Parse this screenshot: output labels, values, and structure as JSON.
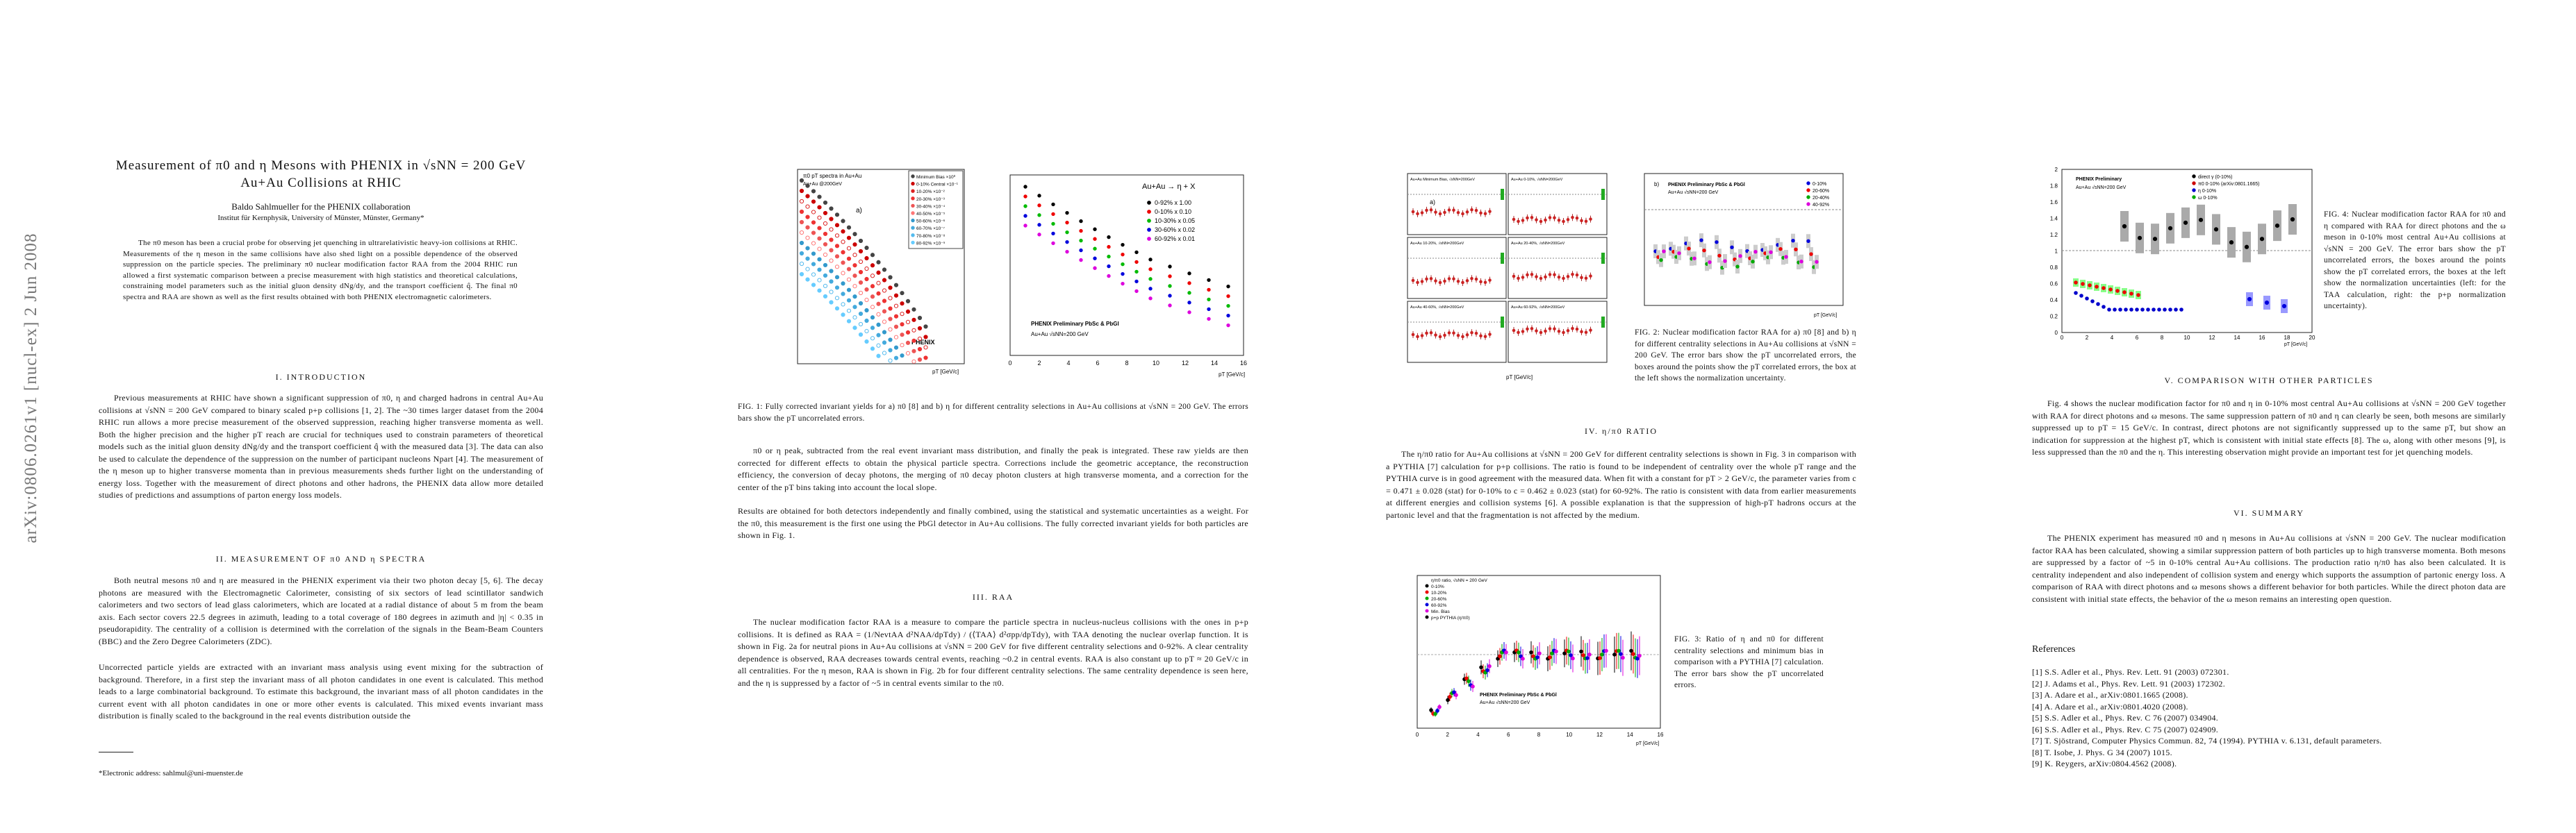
{
  "sidebar": "arXiv:0806.0261v1  [nucl-ex]  2 Jun 2008",
  "page1": {
    "title": "Measurement of π0 and η Mesons with PHENIX in √sNN = 200 GeV Au+Au Collisions at RHIC",
    "author": "Baldo Sahlmueller for the PHENIX collaboration",
    "affiliation": "Institut für Kernphysik, University of Münster, Münster, Germany*",
    "abstract": "The π0 meson has been a crucial probe for observing jet quenching in ultrarelativistic heavy-ion collisions at RHIC. Measurements of the η meson in the same collisions have also shed light on a possible dependence of the observed suppression on the particle species. The preliminary π0 nuclear modification factor RAA from the 2004 RHIC run allowed a first systematic comparison between a precise measurement with high statistics and theoretical calculations, constraining model parameters such as the initial gluon density dNg/dy, and the transport coefficient q̂. The final π0 spectra and RAA are shown as well as the first results obtained with both PHENIX electromagnetic calorimeters.",
    "section1": {
      "heading": "I.  INTRODUCTION",
      "paragraph": "Previous measurements at RHIC have shown a significant suppression of π0, η and charged hadrons in central Au+Au collisions at √sNN = 200 GeV compared to binary scaled p+p collisions [1, 2]. The ~30 times larger dataset from the 2004 RHIC run allows a more precise measurement of the observed suppression, reaching higher transverse momenta as well. Both the higher precision and the higher pT reach are crucial for techniques used to constrain parameters of theoretical models such as the initial gluon density dNg/dy and the transport coefficient q̂ with the measured data [3]. The data can also be used to calculate the dependence of the suppression on the number of participant nucleons Npart [4]. The measurement of the η meson up to higher transverse momenta than in previous measurements sheds further light on the understanding of energy loss. Together with the measurement of direct photons and other hadrons, the PHENIX data allow more detailed studies of predictions and assumptions of parton energy loss models."
    },
    "section2": {
      "heading": "II.  MEASUREMENT OF π0 AND η SPECTRA",
      "paragraphs": [
        "Both neutral mesons π0 and η are measured in the PHENIX experiment via their two photon decay [5, 6]. The decay photons are measured with the Electromagnetic Calorimeter, consisting of six sectors of lead scintillator sandwich calorimeters and two sectors of lead glass calorimeters, which are located at a radial distance of about 5 m from the beam axis. Each sector covers 22.5 degrees in azimuth, leading to a total coverage of 180 degrees in azimuth and |η| < 0.35 in pseudorapidity. The centrality of a collision is determined with the correlation of the signals in the Beam-Beam Counters (BBC) and the Zero Degree Calorimeters (ZDC).",
        "Uncorrected particle yields are extracted with an invariant mass analysis using event mixing for the subtraction of background. Therefore, in a first step the invariant mass of all photon candidates in one event is calculated. This method leads to a large combinatorial background. To estimate this background, the invariant mass of all photon candidates in the current event with all photon candidates in one or more other events is calculated. This mixed events invariant mass distribution is finally scaled to the background in the real events distribution outside the"
      ]
    },
    "footnote": "*Electronic address: sahlmul@uni-muenster.de"
  },
  "page2": {
    "figure1": {
      "panel_a": {
        "title": "π0 pT spectra in Au+Au",
        "subtitle": "Au+Au @200GeV",
        "label": "a)",
        "brand": "PHENIX",
        "xlabel": "pT [GeV/c]",
        "legend": [
          "Minimum Bias ×10⁰",
          "0-10% Central ×10⁻¹",
          "10-20% ×10⁻²",
          "20-30% ×10⁻³",
          "30-40% ×10⁻⁴",
          "40-50% ×10⁻⁵",
          "50-60% ×10⁻⁶",
          "60-70% ×10⁻⁷",
          "70-80% ×10⁻⁸",
          "80-92% ×10⁻⁹"
        ]
      },
      "panel_b": {
        "title": "Au+Au → η + X",
        "brand": "PHENIX Preliminary PbSc & PbGl",
        "subtitle": "Au+Au √sNN=200 GeV",
        "xlabel": "pT [GeV/c]",
        "legend": [
          "0-92% x 1.00",
          "0-10% x 0.10",
          "10-30% x 0.05",
          "30-60% x 0.02",
          "60-92% x 0.01"
        ],
        "xticks": [
          "0",
          "2",
          "4",
          "6",
          "8",
          "10",
          "12",
          "14",
          "16"
        ]
      },
      "caption": "FIG. 1: Fully corrected invariant yields for a) π0 [8] and b) η for different centrality selections in Au+Au collisions at √sNN = 200 GeV. The errors bars show the pT uncorrelated errors."
    },
    "paragraphs": [
      "π0 or η peak, subtracted from the real event invariant mass distribution, and finally the peak is integrated. These raw yields are then corrected for different effects to obtain the physical particle spectra. Corrections include the geometric acceptance, the reconstruction efficiency, the conversion of decay photons, the merging of π0 decay photon clusters at high transverse momenta, and a correction for the center of the pT bins taking into account the local slope.",
      "Results are obtained for both detectors independently and finally combined, using the statistical and systematic uncertainties as a weight. For the π0, this measurement is the first one using the PbGl detector in Au+Au collisions. The fully corrected invariant yields for both particles are shown in Fig. 1."
    ],
    "section3": {
      "heading": "III.  RAA",
      "paragraph": "The nuclear modification factor RAA is a measure to compare the particle spectra in nucleus-nucleus collisions with the ones in p+p collisions. It is defined as RAA = (1/NevtAA d²NAA/dpTdy) / (⟨TAA⟩ d²σpp/dpTdy), with TAA denoting the nuclear overlap function. It is shown in Fig. 2a for neutral pions in Au+Au collisions at √sNN = 200 GeV for five different centrality selections and 0-92%. A clear centrality dependence is observed, RAA decreases towards central events, reaching ~0.2 in central events. RAA is also constant up to pT ≈ 20 GeV/c in all centralities. For the η meson, RAA is shown in Fig. 2b for four different centrality selections. The same centrality dependence is seen here, and the η is suppressed by a factor of ~5 in central events similar to the π0."
    }
  },
  "page3": {
    "figure2": {
      "panels": [
        "Au+Au Minimum Bias, √sNN=200GeV",
        "Au+Au 0-10%, √sNN=200GeV",
        "Au+Au 10-20%, √sNN=200GeV",
        "Au+Au 20-40%, √sNN=200GeV",
        "Au+Au 40-60%, √sNN=200GeV",
        "Au+Au 60-92%, √sNN=200GeV"
      ],
      "label_a": "a)",
      "xlabel": "pT [GeV/c]",
      "panel_b": {
        "brand": "PHENIX Preliminary PbSc & PbGl",
        "subtitle": "Au+Au √sNN=200 GeV",
        "label": "b)",
        "legend": [
          "0-10%",
          "20-60%",
          "20-40%",
          "40-92%"
        ],
        "xlabel": "pT [GeV/c]"
      },
      "caption": "FIG. 2: Nuclear modification factor RAA for a) π0 [8] and b) η for different centrality selections in Au+Au collisions at √sNN = 200 GeV. The error bars show the pT uncorrelated errors, the boxes around the points show the pT correlated errors, the box at the left shows the normalization uncertainty."
    },
    "section4": {
      "heading": "IV.  η/π0 RATIO",
      "paragraph": "The η/π0 ratio for Au+Au collisions at √sNN = 200 GeV for different centrality selections is shown in Fig. 3 in comparison with a PYTHIA [7] calculation for p+p collisions. The ratio is found to be independent of centrality over the whole pT range and the PYTHIA curve is in good agreement with the measured data. When fit with a constant for pT > 2 GeV/c, the parameter varies from c = 0.471 ± 0.028 (stat) for 0-10% to c = 0.462 ± 0.023 (stat) for 60-92%. The ratio is consistent with data from earlier measurements at different energies and collision systems [6]. A possible explanation is that the suppression of high-pT hadrons occurs at the partonic level and that the fragmentation is not affected by the medium."
    },
    "figure3": {
      "legend": [
        "η/π0 ratio, √sNN = 200 GeV",
        "0-10%",
        "10-20%",
        "20-60%",
        "60-92%",
        "Min. Bias",
        "p+p PYTHIA (η/π0)"
      ],
      "brand": "PHENIX Preliminary PbSc & PbGl",
      "subtitle": "Au+Au √sNN=200 GeV",
      "xlabel": "pT [GeV/c]",
      "xticks": [
        "0",
        "2",
        "4",
        "6",
        "8",
        "10",
        "12",
        "14",
        "16"
      ],
      "caption": "FIG. 3: Ratio of η and π0 for different centrality selections and minimum bias in comparison with a PYTHIA [7] calculation. The error bars show the pT uncorrelated errors."
    }
  },
  "page4": {
    "figure4": {
      "brand": "PHENIX Preliminary",
      "subtitle": "Au+Au √sNN=200 GeV",
      "legend": [
        "direct γ (0-10%)",
        "π0 0-10% (arXiv:0801.1665)",
        "η 0-10%",
        "ω 0-10%"
      ],
      "xticks": [
        "0",
        "2",
        "4",
        "6",
        "8",
        "10",
        "12",
        "14",
        "16",
        "18",
        "20"
      ],
      "yticks": [
        "0",
        "0.2",
        "0.4",
        "0.6",
        "0.8",
        "1",
        "1.2",
        "1.4",
        "1.6",
        "1.8",
        "2"
      ],
      "xlabel": "pT [GeV/c]",
      "caption": "FIG. 4: Nuclear modification factor RAA for π0 and η compared with RAA for direct photons and the ω meson in 0-10% most central Au+Au collisions at √sNN = 200 GeV. The error bars show the pT uncorrelated errors, the boxes around the points show the pT correlated errors, the boxes at the left show the normalization uncertainties (left: for the TAA calculation, right: the p+p normalization uncertainty)."
    },
    "section5": {
      "heading": "V.  COMPARISON WITH OTHER PARTICLES",
      "paragraph": "Fig. 4 shows the nuclear modification factor for π0 and η in 0-10% most central Au+Au collisions at √sNN = 200 GeV together with RAA for direct photons and ω mesons. The same suppression pattern of π0 and η can clearly be seen, both mesons are similarly suppressed up to pT = 15 GeV/c. In contrast, direct photons are not significantly suppressed up to the same pT, but show an indication for suppression at the highest pT, which is consistent with initial state effects [8]. The ω, along with other mesons [9], is less suppressed than the π0 and the η. This interesting observation might provide an important test for jet quenching models."
    },
    "section6": {
      "heading": "VI.  SUMMARY",
      "paragraph": "The PHENIX experiment has measured π0 and η mesons in Au+Au collisions at √sNN = 200 GeV. The nuclear modification factor RAA has been calculated, showing a similar suppression pattern of both particles up to high transverse momenta. Both mesons are suppressed by a factor of ~5 in 0-10% central Au+Au collisions. The production ratio η/π0 has also been calculated. It is centrality independent and also independent of collision system and energy which supports the assumption of partonic energy loss. A comparison of RAA with direct photons and ω mesons shows a different behavior for both particles. While the direct photon data are consistent with initial state effects, the behavior of the ω meson remains an interesting open question."
    },
    "references_heading": "References",
    "references": [
      "[1] S.S. Adler et al., Phys. Rev. Lett. 91 (2003) 072301.",
      "[2] J. Adams et al., Phys. Rev. Lett. 91 (2003) 172302.",
      "[3] A. Adare et al., arXiv:0801.1665 (2008).",
      "[4] A. Adare et al., arXiv:0801.4020 (2008).",
      "[5] S.S. Adler et al., Phys. Rev. C 76 (2007) 034904.",
      "[6] S.S. Adler et al., Phys. Rev. C 75 (2007) 024909.",
      "[7] T. Sjöstrand, Computer Physics Commun. 82, 74 (1994). PYTHIA v. 6.131, default parameters.",
      "[8] T. Isobe, J. Phys. G 34 (2007) 1015.",
      "[9] K. Reygers, arXiv:0804.4562 (2008)."
    ]
  }
}
